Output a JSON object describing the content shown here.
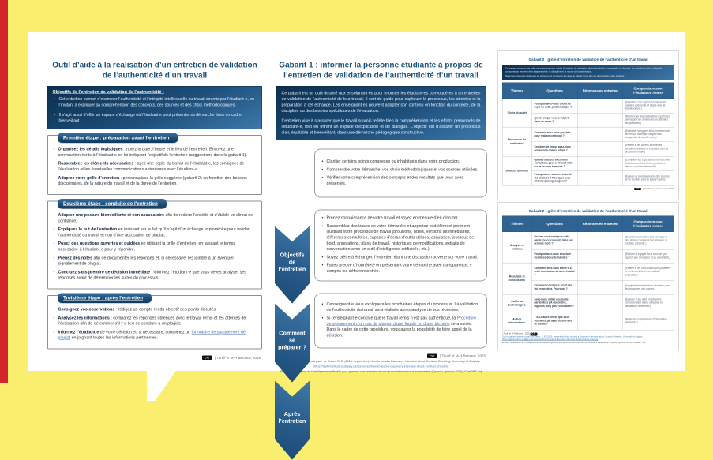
{
  "colors": {
    "background_yellow": "#FAEE6E",
    "accent_red": "#D2262C",
    "title_blue": "#1A527F",
    "panel_blue_dark": "#0C2F50",
    "panel_blue_light": "#3C78AA",
    "table_header_blue": "#2F6492"
  },
  "icons": {
    "cc_badge": "CC"
  },
  "page1": {
    "title": "Outil d’aide à la réalisation d’un entretien de validation de l’authenticité d’un travail",
    "objectives": {
      "heading": "Objectifs de l’entretien de validation de l’authenticité :",
      "bullets": [
        [
          {
            "t": "Cet entretien permet d’examiner l’authenticité et l’intégrité intellectuelle du travail soumis par l’étudiant·e, en l’invitant à expliquer sa compréhension des concepts, des sources et des choix méthodologiques."
          }
        ],
        [
          {
            "t": "Il s’agit aussi d’offrir un espace d’échange où l’étudiant·e peut présenter sa démarche dans un cadre bienveillant."
          }
        ]
      ]
    },
    "steps": [
      {
        "header": "Première étape : préparation avant l’entretien",
        "bullets": [
          [
            {
              "t": "Organisez les détails logistiques",
              "b": true
            },
            {
              "t": " : notez la date, l’heure et le lieu de l’entretien. Envoyez une convocation écrite à l’étudiant·e en lui indiquant l’objectif de l’entretien (suggestions dans le gabarit 1)."
            }
          ],
          [
            {
              "t": "Rassemblez les éléments nécessaires",
              "b": true
            },
            {
              "t": " : ayez une copie du travail de l’étudiant·e, les consignes de l’évaluation et les éventuelles communications antérieures avec l’étudiant·e."
            }
          ],
          [
            {
              "t": "Adaptez votre grille d’entretien",
              "b": true
            },
            {
              "t": " : personnalisez la grille suggérée (gabarit 2) en fonction des besoins disciplinaires, de la nature du travail et de la durée de l’entretien."
            }
          ]
        ]
      },
      {
        "header": "Deuxième étape : conduite de l’entretien",
        "bullets": [
          [
            {
              "t": "Adoptez une posture bienveillante et non accusatoire",
              "b": true
            },
            {
              "t": " afin de réduire l’anxiété et d’établir un climat de confiance."
            }
          ],
          [
            {
              "t": "Expliquez le but de l’entretien",
              "b": true
            },
            {
              "t": " en insistant sur le fait qu’il s’agit d’un échange exploratoire pour valider l’authenticité du travail et non d’une accusation de plagiat."
            }
          ],
          [
            {
              "t": "Posez des questions ouvertes et guidées",
              "b": true
            },
            {
              "t": " en utilisant la grille d’entretien, en laissant le temps nécessaire à l’étudiant·e pour y répondre."
            }
          ],
          [
            {
              "t": "Prenez des notes",
              "b": true
            },
            {
              "t": " afin de documenter les réponses et, si nécessaire, les joindre à un éventuel signalement de plagiat."
            }
          ],
          [
            {
              "t": "Concluez sans prendre de décision immédiate",
              "b": true
            },
            {
              "t": " : informez l’étudiant·e que vous devez analyser ses réponses avant de déterminer les suites du processus."
            }
          ]
        ]
      },
      {
        "header": "Troisième étape : après l’entretien",
        "bullets": [
          [
            {
              "t": "Consignez vos observations",
              "b": true
            },
            {
              "t": " : rédigez un compte rendu objectif des points discutés."
            }
          ],
          [
            {
              "t": "Analysez les informations",
              "b": true
            },
            {
              "t": " : comparez les réponses obtenues avec le travail remis et les attentes de l’évaluation afin de déterminer s’il y a lieu de conclure à un plagiat."
            }
          ],
          [
            {
              "t": "Informez l’étudiant·e",
              "b": true
            },
            {
              "t": " de votre décision et, si nécessaire, complétez un "
            },
            {
              "t": "formulaire de signalement de plagiat",
              "l": true
            },
            {
              "t": " en joignant toutes les informations pertinentes."
            }
          ]
        ]
      }
    ],
    "footer": "| Tardif et M-H Bernard, 2025"
  },
  "page2": {
    "title": "Gabarit 1 : informer la personne étudiante à propos de l’entretien de validation de l’authenticité d’un travail",
    "intro": [
      "Ce gabarit est un outil destiné aux enseignant·es pour informer les étudiant·es convoqué·es à un entretien de validation de l’authenticité de leur travail. Il sert de guide pour expliquer le processus, les attentes et la préparation à cet échange. Les enseignant·es peuvent adapter son contenu en fonction du contexte, de la discipline ou des besoins spécifiques de l’évaluation.",
      "L’entretien vise à s’assurer que le travail soumis reflète bien la compréhension et les efforts personnels de l’étudiant·e, tout en offrant un espace d’explication et de dialogue. L’objectif est d’assurer un processus clair, équitable et bienveillant, dans une démarche pédagogique constructive."
    ],
    "sections": [
      {
        "label": "Objectifs de l’entretien",
        "bullets": [
          [
            {
              "t": "Clarifier certains points complexes ou inhabituels dans votre production."
            }
          ],
          [
            {
              "t": "Comprendre votre démarche, vos choix méthodologiques et vos sources utilisées."
            }
          ],
          [
            {
              "t": "Vérifier votre compréhension des concepts et des résultats que vous avez présentés."
            }
          ]
        ]
      },
      {
        "label": "Comment se préparer ?",
        "bullets": [
          [
            {
              "t": "Prenez connaissance de votre travail et soyez en mesure d’en discuter."
            }
          ],
          [
            {
              "t": "Rassemblez des traces de votre démarche et apportez tout élément pertinent illustrant votre processus de travail (brouillons, notes, versions intermédiaires, références consultées, captures d’écran d’outils utilisés, esquisses, journaux de bord, annotations, plans de travail, historiques de modifications, extraits de conversation avec un outil d’intelligence artificielle, etc.)."
            }
          ],
          [
            {
              "t": "Soyez prêt·e à échanger, l’entretien étant une discussion ouverte sur votre travail."
            }
          ],
          [
            {
              "t": "Faites preuve d’honnêteté en présentant votre démarche avec transparence, y compris les défis rencontrés."
            }
          ]
        ]
      },
      {
        "label": "Après l’entretien",
        "bullets": [
          [
            {
              "t": "L’enseignant·e vous expliquera les prochaines étapes du processus. La validation de l’authenticité du travail sera réalisée après analyse de vos réponses."
            }
          ],
          [
            {
              "t": "Si l’enseignant·e conclue que le travail remis n’est pas authentique, la "
            },
            {
              "t": "Procédure de signalement d’un cas de plagiat, d’une fraude ou d’une tricherie",
              "l": true
            },
            {
              "t": " sera suivie. Dans le cadre de cette procédure, vous aurez la possibilité de faire appel de la décision."
            }
          ]
        ]
      }
    ],
    "footer_credit": "| Tardif et M-H Bernard, 2025",
    "footer_lines": [
      "Outil et gabarit réalisés à partir de Eaton, S. E. (2019, septembre). How to Lead a Discovery Interview about Contract Cheating. University of Calgary.",
      "https://taylorinstitute.ucalgary.ca/resources/how-to-lead-a-discovery-interview-about-contract-cheating",
      "Et avec l’assistance de l’intelligence artificielle pour générer une première structure de l’information à transmettre. (OpenAI, (janvier 2025). ChatGPT 4o)"
    ]
  },
  "gabarit2a": {
    "title": "Gabarit 2 : grille d’entretien de validation de l’authenticité d’un travail",
    "intro": [
      "Ce gabarit propose une grille de questions pour guider l’entretien de validation de l’authenticité d’un travail. Les thèmes, les questions et les pistes de comparaison peuvent être adaptés selon la discipline et la nature du travail évalué.",
      "Notez les réponses obtenues en entretien et comparez-les avec le travail remis afin de documenter votre analyse."
    ],
    "table": {
      "headers": [
        "Thèmes",
        "Questions",
        "Réponses en entretien",
        "Comparaison avec l’évaluation remise"
      ],
      "groups": [
        {
          "theme": "Choix du sujet",
          "rows": [
            {
              "q": "Pourquoi avez-vous choisi ce sujet ou cette problématique ?",
              "c": "(Examiner si le sujet est expliqué de manière cohérente et aligné avec le travail soumis.)"
            },
            {
              "q": "Qu’est-ce qui vous a inspiré dans ce choix ?",
              "c": "(Rechercher des motivations exprimées par rapport au contenu et aux attentes disciplinaires.)"
            }
          ]
        },
        {
          "theme": "Processus de réalisation",
          "rows": [
            {
              "q": "Comment avez-vous procédé pour réaliser ce travail ?",
              "c": "(Examiner la logique et la cohérence du processus décrit par rapport à la complexité du travail remis.)"
            },
            {
              "q": "Combien de temps avez-vous consacré à chaque étape ?",
              "c": "(Vérifier si les durées annoncées semblent réalistes et en phase avec la production finale.)"
            }
          ]
        },
        {
          "theme": "Sources utilisées",
          "rows": [
            {
              "q": "Quelles sources avez-vous consultées pour ce travail ? Où les avez-vous trouvées ?",
              "c": "(Comparer les explications fournies avec les sources citées et leur pertinence dans le contexte du travail.)"
            },
            {
              "q": "Pourquoi ces sources ont-elles été choisies ? Pourquoi avoir cité ces passages/lignes ?",
              "c": "(Évaluer la compréhension des sources et de leur lien avec le travail soumis.)"
            }
          ]
        }
      ]
    },
    "footer": "| Tardif et M-H Bernard, 2025"
  },
  "gabarit2b": {
    "title": "Gabarit 2 : grille d’entretien de validation de l’authenticité d’un travail",
    "table": {
      "headers": [
        "Thèmes",
        "Questions",
        "Réponses en entretien",
        "Comparaison avec l’évaluation remise"
      ],
      "groups": [
        {
          "theme": "Analyse et contenu",
          "rows": [
            {
              "q": "Pouvez-vous expliquer cette partie (ou ce concept) dans vos propres mots ?",
              "c": "(Examiner la maîtrise des concepts et des termes complexes en lien avec le contenu présenté.)"
            },
            {
              "q": "Pourquoi avez-vous structuré vos idées de cette manière ?",
              "c": "(Évaluer la logique de la structure par rapport aux consignes et au plan établi.)"
            }
          ]
        },
        {
          "theme": "Résultats et conclusions",
          "rows": [
            {
              "q": "Comment êtes-vous arrivé·e à cette conclusion ou à ce résultat ?",
              "c": "(Vérifier si les conclusions sont justifiées et si elles reflètent les résultats présentés.)"
            },
            {
              "q": "Certaines consignes n’ont pas été respectées. Pourquoi ?",
              "c": "(Analyser les explications données pour les consignes non suivies.)"
            }
          ]
        },
        {
          "theme": "Outils ou technologies",
          "rows": [
            {
              "q": "Avez-vous utilisé des outils particuliers (IA générative, logiciels, etc.) pour vous aider ?",
              "c": "(Évaluer si les outils mentionnés correspondent à leur utilisation ou déclaration à cet effet.)"
            }
          ]
        },
        {
          "theme": "Autres informations",
          "rows": [
            {
              "q": "Y a-t-il autre chose que vous souhaitez partager concernant ce travail ?",
              "c": "(Noter les compléments d’information pertinents.)"
            }
          ]
        }
      ]
    },
    "footer_lines": [
      "| Tardif et M-H Bernard, 2025",
      "Outil et gabarit réalisés à partir de Eaton, S. E. (2019, septembre). How to Lead a Discovery Interview about Contract Cheating. University of Calgary. https://taylorinstitute.ucalgary.ca/resources/how-to-lead-a-discovery-interview-about-contract-cheating",
      "Et avec l’assistance de l’intelligence artificielle pour générer une première structure de l’information à transmettre. (OpenAI, (janvier 2025). ChatGPT 4o)"
    ]
  }
}
